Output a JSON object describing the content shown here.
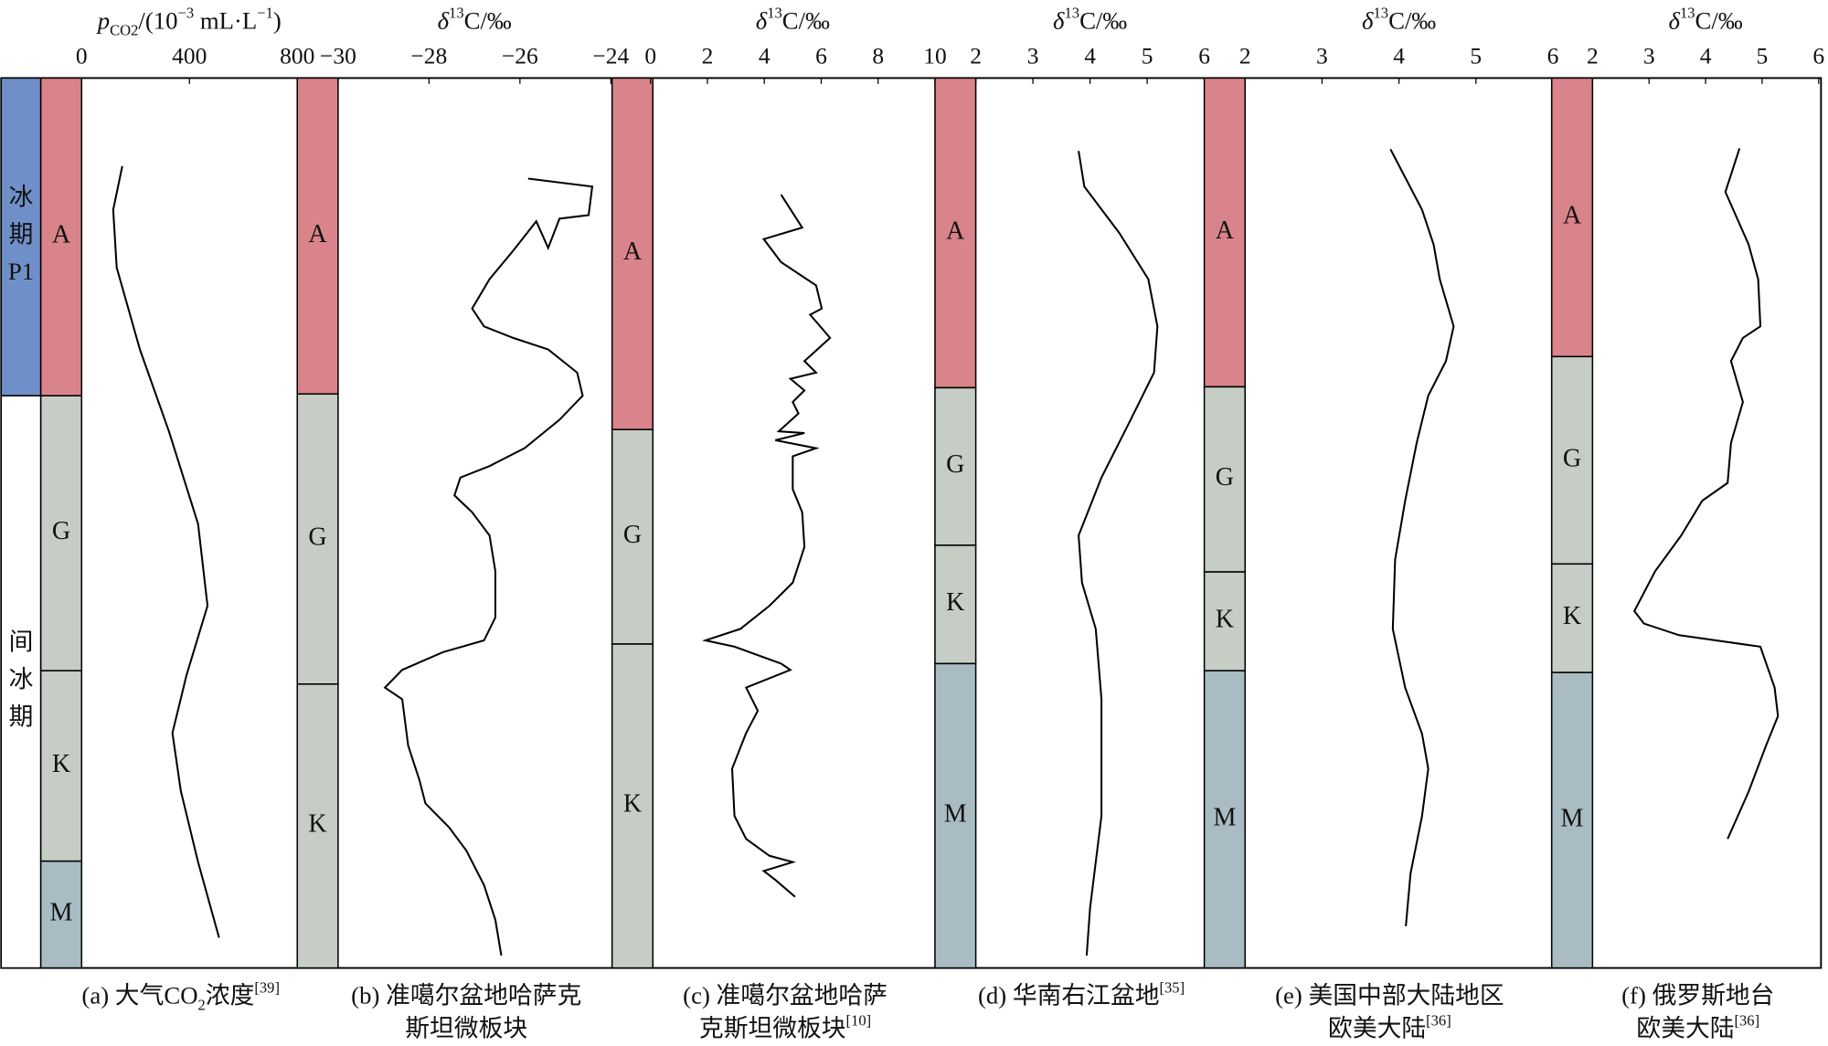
{
  "chart_data": [
    {
      "type": "line",
      "xlabel": [
        {
          "text": "p",
          "style": "italic"
        },
        {
          "text": "CO2",
          "style": "sub"
        },
        {
          "text": "/(10",
          "style": "normal"
        },
        {
          "text": "−3",
          "style": "sup"
        },
        {
          "text": " mL·L",
          "style": "normal"
        },
        {
          "text": "−1",
          "style": "sup"
        },
        {
          "text": ")",
          "style": "normal"
        }
      ],
      "xlim": [
        0,
        800
      ],
      "xticks": [
        0,
        400,
        800
      ],
      "ylim": [
        0,
        100
      ],
      "stages": [
        {
          "label": [
            "冰",
            "期",
            "P1"
          ],
          "from": 0,
          "to": 35.7,
          "color": "#6f8fc8"
        },
        {
          "label": [
            "间",
            "冰",
            "期"
          ],
          "from": 35.7,
          "to": 100,
          "color": "#ffffff"
        }
      ],
      "zones": [
        {
          "label": "A",
          "from": 0,
          "to": 35.7,
          "color": "#d9848a"
        },
        {
          "label": "G",
          "from": 35.7,
          "to": 66.6,
          "color": "#c5cdc4"
        },
        {
          "label": "K",
          "from": 66.6,
          "to": 88,
          "color": "#c5cdc4"
        },
        {
          "label": "M",
          "from": 88,
          "to": 100,
          "color": "#a9bcc3"
        }
      ],
      "series": [
        {
          "color": "#000000",
          "x": [
            151,
            117,
            130,
            216,
            324,
            432,
            467,
            389,
            337,
            368,
            432,
            510
          ],
          "y": [
            9.9,
            14.8,
            21.3,
            30.5,
            39.7,
            50.1,
            59.3,
            67.1,
            73.6,
            80.1,
            88.1,
            96.6
          ]
        }
      ],
      "caption": [
        [
          {
            "text": "(a) 大气CO",
            "style": "normal"
          },
          {
            "text": "2",
            "style": "sub"
          },
          {
            "text": "浓度",
            "style": "normal"
          },
          {
            "text": "[39]",
            "style": "sup"
          }
        ]
      ]
    },
    {
      "type": "line",
      "xlabel": [
        {
          "text": "δ",
          "style": "italic"
        },
        {
          "text": "13",
          "style": "sup"
        },
        {
          "text": "C/‰",
          "style": "normal"
        }
      ],
      "xlim": [
        -30,
        -24
      ],
      "xticks": [
        {
          "value": -30,
          "label": "−30"
        },
        {
          "value": -28,
          "label": "−28"
        },
        {
          "value": -26,
          "label": "−26"
        },
        {
          "value": -24,
          "label": "−24"
        }
      ],
      "ylim": [
        0,
        100
      ],
      "zones": [
        {
          "label": "A",
          "from": 0,
          "to": 35.5,
          "color": "#d9848a"
        },
        {
          "label": "G",
          "from": 35.5,
          "to": 68.1,
          "color": "#c5cdc4"
        },
        {
          "label": "K",
          "from": 68.1,
          "to": 100,
          "color": "#c5cdc4"
        }
      ],
      "series": [
        {
          "color": "#000000",
          "x": [
            -25.82,
            -24.41,
            -24.49,
            -25.13,
            -25.38,
            -25.64,
            -26.15,
            -26.67,
            -27.05,
            -26.79,
            -26.15,
            -25.38,
            -24.74,
            -24.62,
            -25.13,
            -25.9,
            -26.67,
            -27.31,
            -27.44,
            -27.05,
            -26.67,
            -26.54,
            -26.54,
            -26.79,
            -27.69,
            -28.59,
            -28.97,
            -28.59,
            -28.46,
            -28.21,
            -28.08,
            -27.56,
            -27.18,
            -26.79,
            -26.54,
            -26.41
          ],
          "y": [
            11.3,
            12.2,
            15.4,
            15.8,
            19.1,
            16.1,
            19.4,
            22.6,
            25.9,
            27.9,
            29.2,
            30.5,
            33.1,
            35.7,
            38.4,
            41.6,
            43.6,
            44.9,
            46.9,
            48.8,
            51.4,
            55.4,
            60.6,
            63.2,
            64.5,
            66.5,
            68.5,
            69.8,
            75,
            78.9,
            81.5,
            84.2,
            86.8,
            90.7,
            94.6,
            98.6
          ]
        }
      ],
      "caption": [
        [
          {
            "text": "(b) 准噶尔盆地哈萨克",
            "style": "normal"
          }
        ],
        [
          {
            "text": "斯坦微板块",
            "style": "normal"
          }
        ]
      ]
    },
    {
      "type": "line",
      "xlabel": [
        {
          "text": "δ",
          "style": "italic"
        },
        {
          "text": "13",
          "style": "sup"
        },
        {
          "text": "C/‰",
          "style": "normal"
        }
      ],
      "xlim": [
        0,
        10
      ],
      "xticks": [
        0,
        2,
        4,
        6,
        8,
        10
      ],
      "ylim": [
        0,
        100
      ],
      "zones": [
        {
          "label": "A",
          "from": 0,
          "to": 39.5,
          "color": "#d9848a"
        },
        {
          "label": "G",
          "from": 39.5,
          "to": 63.6,
          "color": "#c5cdc4"
        },
        {
          "label": "K",
          "from": 63.6,
          "to": 100,
          "color": "#c5cdc4"
        }
      ],
      "series": [
        {
          "color": "#000000",
          "x": [
            4.59,
            5.33,
            3.98,
            4.59,
            5.82,
            6.02,
            5.61,
            6.31,
            5.41,
            5.82,
            4.92,
            5.41,
            5.0,
            5.2,
            4.51,
            5.41,
            4.39,
            5.82,
            5.0,
            5.0,
            5.33,
            5.41,
            5.0,
            4.18,
            3.16,
            1.93,
            2.95,
            4.59,
            4.92,
            3.36,
            3.77,
            3.36,
            2.87,
            2.95,
            3.36,
            4.18,
            5.0,
            3.98,
            4.39,
            5.08
          ],
          "y": [
            13.1,
            16.8,
            18.1,
            20.7,
            23.3,
            25.9,
            26.6,
            29.2,
            31.8,
            33.1,
            33.8,
            35.1,
            36.4,
            37.7,
            39.7,
            39.9,
            40.7,
            41.6,
            42.5,
            46.2,
            48.8,
            52.7,
            56.7,
            59.3,
            61.9,
            63.2,
            63.9,
            65.8,
            66.5,
            68.5,
            71.1,
            73.6,
            77.6,
            82.9,
            85.5,
            87.4,
            88.1,
            89.1,
            90.1,
            92.0
          ]
        }
      ],
      "caption": [
        [
          {
            "text": "(c) 准噶尔盆地哈萨",
            "style": "normal"
          }
        ],
        [
          {
            "text": "克斯坦微板块",
            "style": "normal"
          },
          {
            "text": "[10]",
            "style": "sup"
          }
        ]
      ]
    },
    {
      "type": "line",
      "xlabel": [
        {
          "text": "δ",
          "style": "italic"
        },
        {
          "text": "13",
          "style": "sup"
        },
        {
          "text": "C/‰",
          "style": "normal"
        }
      ],
      "xlim": [
        2,
        6
      ],
      "xticks": [
        2,
        3,
        4,
        5,
        6
      ],
      "ylim": [
        0,
        100
      ],
      "zones": [
        {
          "label": "A",
          "from": 0,
          "to": 34.8,
          "color": "#d9848a"
        },
        {
          "label": "G",
          "from": 34.8,
          "to": 52.5,
          "color": "#c5cdc4"
        },
        {
          "label": "K",
          "from": 52.5,
          "to": 65.8,
          "color": "#c5cdc4"
        },
        {
          "label": "M",
          "from": 65.8,
          "to": 100,
          "color": "#a9bcc3"
        }
      ],
      "series": [
        {
          "color": "#000000",
          "x": [
            3.8,
            3.9,
            4.51,
            5.02,
            5.18,
            5.12,
            4.71,
            4.2,
            3.8,
            3.86,
            4.1,
            4.2,
            4.2,
            4.0,
            3.94
          ],
          "y": [
            8.2,
            12.2,
            17.4,
            22.6,
            27.9,
            33.1,
            38.4,
            44.9,
            51.4,
            56.7,
            61.9,
            69.8,
            82.9,
            93.3,
            98.6
          ]
        }
      ],
      "caption": [
        [
          {
            "text": "(d) 华南右江盆地",
            "style": "normal"
          },
          {
            "text": "[35]",
            "style": "sup"
          }
        ]
      ]
    },
    {
      "type": "line",
      "xlabel": [
        {
          "text": "δ",
          "style": "italic"
        },
        {
          "text": "13",
          "style": "sup"
        },
        {
          "text": "C/‰",
          "style": "normal"
        }
      ],
      "xlim": [
        2,
        6
      ],
      "xticks": [
        2,
        3,
        4,
        5,
        6
      ],
      "ylim": [
        0,
        100
      ],
      "zones": [
        {
          "label": "A",
          "from": 0,
          "to": 34.7,
          "color": "#d9848a"
        },
        {
          "label": "G",
          "from": 34.7,
          "to": 55.5,
          "color": "#c5cdc4"
        },
        {
          "label": "K",
          "from": 55.5,
          "to": 66.6,
          "color": "#c5cdc4"
        },
        {
          "label": "M",
          "from": 66.6,
          "to": 100,
          "color": "#a9bcc3"
        }
      ],
      "series": [
        {
          "color": "#000000",
          "x": [
            3.89,
            4.3,
            4.45,
            4.53,
            4.71,
            4.61,
            4.38,
            4.23,
            4.08,
            3.95,
            3.92,
            4.08,
            4.3,
            4.38,
            4.3,
            4.15,
            4.09
          ],
          "y": [
            8,
            14.8,
            18.7,
            22.6,
            27.9,
            31.8,
            35.7,
            41,
            47.5,
            54.1,
            61.9,
            68.5,
            73.7,
            77.6,
            82.9,
            89.4,
            95.3
          ]
        }
      ],
      "caption": [
        [
          {
            "text": "(e) 美国中部大陆地区",
            "style": "normal"
          }
        ],
        [
          {
            "text": "欧美大陆",
            "style": "normal"
          },
          {
            "text": "[36]",
            "style": "sup"
          }
        ]
      ]
    },
    {
      "type": "line",
      "xlabel": [
        {
          "text": "δ",
          "style": "italic"
        },
        {
          "text": "13",
          "style": "sup"
        },
        {
          "text": "C/‰",
          "style": "normal"
        }
      ],
      "xlim": [
        2,
        6
      ],
      "xticks": [
        2,
        3,
        4,
        5,
        6
      ],
      "ylim": [
        0,
        100
      ],
      "zones": [
        {
          "label": "A",
          "from": 0,
          "to": 31.3,
          "color": "#d9848a"
        },
        {
          "label": "G",
          "from": 31.3,
          "to": 54.6,
          "color": "#c5cdc4"
        },
        {
          "label": "K",
          "from": 54.6,
          "to": 66.8,
          "color": "#c5cdc4"
        },
        {
          "label": "M",
          "from": 66.8,
          "to": 100,
          "color": "#a9bcc3"
        }
      ],
      "series": [
        {
          "color": "#000000",
          "x": [
            4.6,
            4.35,
            4.76,
            4.93,
            4.97,
            4.66,
            4.45,
            4.66,
            4.45,
            4.39,
            3.94,
            3.57,
            3.11,
            2.74,
            2.91,
            3.53,
            4.97,
            5.22,
            5.28,
            5.07,
            4.76,
            4.39
          ],
          "y": [
            7.9,
            12.8,
            18.7,
            22.6,
            27.9,
            29.2,
            31.8,
            36.4,
            41,
            45.5,
            47.5,
            51.4,
            55.4,
            59.9,
            61.3,
            62.6,
            63.9,
            68.5,
            71.7,
            75,
            80.2,
            85.5
          ]
        }
      ],
      "caption": [
        [
          {
            "text": "(f) 俄罗斯地台",
            "style": "normal"
          }
        ],
        [
          {
            "text": "欧美大陆",
            "style": "normal"
          },
          {
            "text": "[36]",
            "style": "sup"
          }
        ]
      ]
    }
  ]
}
